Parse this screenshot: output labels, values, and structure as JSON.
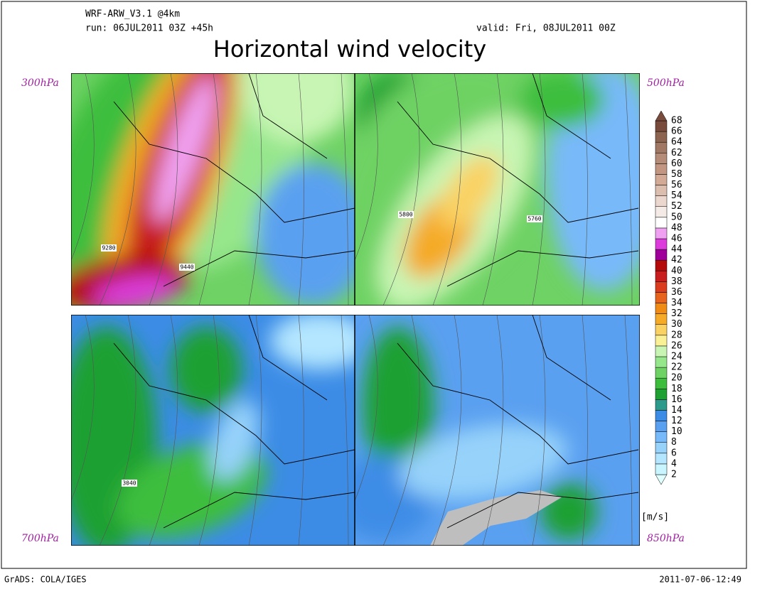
{
  "header": {
    "model": "WRF-ARW_V3.1 @4km",
    "run": "run: 06JUL2011 03Z +45h",
    "valid": "valid: Fri, 08JUL2011 00Z",
    "title": "Horizontal wind velocity"
  },
  "panels": [
    {
      "level": "300hPa",
      "contour_labels": [
        "9280",
        "9440"
      ]
    },
    {
      "level": "500hPa",
      "contour_labels": [
        "5800",
        "5760"
      ]
    },
    {
      "level": "700hPa",
      "contour_labels": [
        "3040"
      ]
    },
    {
      "level": "850hPa",
      "contour_labels": []
    }
  ],
  "colorbar": {
    "unit": "[m/s]",
    "levels": [
      {
        "label": 2,
        "color": "#e0ffff"
      },
      {
        "label": 4,
        "color": "#c8f5ff"
      },
      {
        "label": 6,
        "color": "#b4e6ff"
      },
      {
        "label": 8,
        "color": "#96d2fa"
      },
      {
        "label": 10,
        "color": "#78b9fa"
      },
      {
        "label": 12,
        "color": "#5aa0f0"
      },
      {
        "label": 14,
        "color": "#3c8ce6"
      },
      {
        "label": 16,
        "color": "#2d9b8c"
      },
      {
        "label": 18,
        "color": "#1ea032"
      },
      {
        "label": 20,
        "color": "#3cbe3c"
      },
      {
        "label": 22,
        "color": "#6ed264"
      },
      {
        "label": 24,
        "color": "#96e68c"
      },
      {
        "label": 26,
        "color": "#c8f5b4"
      },
      {
        "label": 28,
        "color": "#faf096"
      },
      {
        "label": 30,
        "color": "#fad264"
      },
      {
        "label": 32,
        "color": "#f5aa28"
      },
      {
        "label": 34,
        "color": "#f08c14"
      },
      {
        "label": 36,
        "color": "#e6641e"
      },
      {
        "label": 38,
        "color": "#dc3c1e"
      },
      {
        "label": 40,
        "color": "#c81e1e"
      },
      {
        "label": 42,
        "color": "#b40a0a"
      },
      {
        "label": 44,
        "color": "#a0009a"
      },
      {
        "label": 46,
        "color": "#dc3cdc"
      },
      {
        "label": 48,
        "color": "#f0a0f0"
      },
      {
        "label": 50,
        "color": "#ffffff"
      },
      {
        "label": 52,
        "color": "#f5ebe6"
      },
      {
        "label": 54,
        "color": "#ebd7cd"
      },
      {
        "label": 56,
        "color": "#dcbeaf"
      },
      {
        "label": 58,
        "color": "#d2aa96"
      },
      {
        "label": 60,
        "color": "#c39682"
      },
      {
        "label": 62,
        "color": "#b48c78"
      },
      {
        "label": 64,
        "color": "#a07864"
      },
      {
        "label": 66,
        "color": "#8c6450"
      },
      {
        "label": 68,
        "color": "#784b3c"
      }
    ]
  },
  "footer": {
    "left": "GrADS: COLA/IGES",
    "right": "2011-07-06-12:49"
  }
}
